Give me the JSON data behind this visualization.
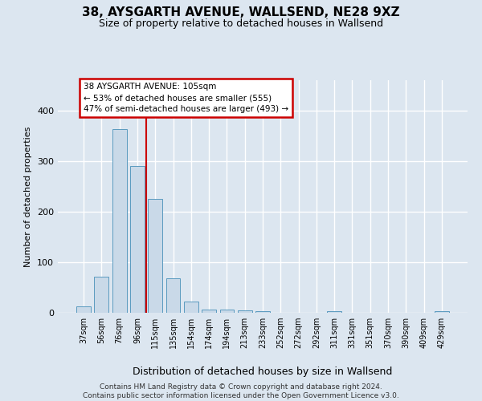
{
  "title": "38, AYSGARTH AVENUE, WALLSEND, NE28 9XZ",
  "subtitle": "Size of property relative to detached houses in Wallsend",
  "xlabel": "Distribution of detached houses by size in Wallsend",
  "ylabel": "Number of detached properties",
  "categories": [
    "37sqm",
    "56sqm",
    "76sqm",
    "96sqm",
    "115sqm",
    "135sqm",
    "154sqm",
    "174sqm",
    "194sqm",
    "213sqm",
    "233sqm",
    "252sqm",
    "272sqm",
    "292sqm",
    "311sqm",
    "331sqm",
    "351sqm",
    "370sqm",
    "390sqm",
    "409sqm",
    "429sqm"
  ],
  "values": [
    12,
    72,
    363,
    290,
    225,
    68,
    22,
    7,
    6,
    5,
    3,
    0,
    0,
    0,
    3,
    0,
    0,
    0,
    0,
    0,
    3
  ],
  "bar_color": "#c9d9e8",
  "bar_edge_color": "#5a9abf",
  "background_color": "#dce6f0",
  "grid_color": "#ffffff",
  "vline_x": 3.5,
  "vline_color": "#cc0000",
  "annotation_line1": "38 AYSGARTH AVENUE: 105sqm",
  "annotation_line2": "← 53% of detached houses are smaller (555)",
  "annotation_line3": "47% of semi-detached houses are larger (493) →",
  "annotation_box_color": "#cc0000",
  "ylim": [
    0,
    460
  ],
  "title_fontsize": 11,
  "subtitle_fontsize": 9,
  "footnote": "Contains HM Land Registry data © Crown copyright and database right 2024.\nContains public sector information licensed under the Open Government Licence v3.0."
}
